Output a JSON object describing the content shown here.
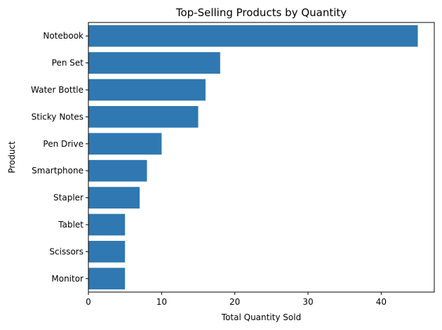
{
  "chart_data": {
    "type": "bar",
    "orientation": "horizontal",
    "title": "Top-Selling Products by Quantity",
    "xlabel": "Total Quantity Sold",
    "ylabel": "Product",
    "categories": [
      "Notebook",
      "Pen Set",
      "Water Bottle",
      "Sticky Notes",
      "Pen Drive",
      "Smartphone",
      "Stapler",
      "Tablet",
      "Scissors",
      "Monitor"
    ],
    "values": [
      45,
      18,
      16,
      15,
      10,
      8,
      7,
      5,
      5,
      5
    ],
    "xlim": [
      0,
      47.25
    ],
    "xticks": [
      0,
      10,
      20,
      30,
      40
    ],
    "grid": false,
    "colors": {
      "bar": "#2f78b1",
      "axis": "#000000"
    }
  }
}
